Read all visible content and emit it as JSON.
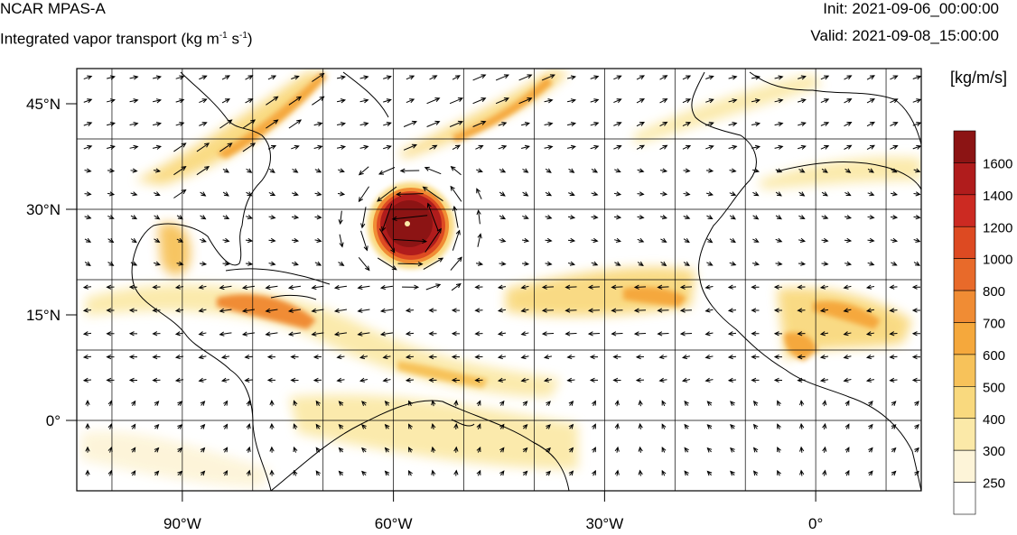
{
  "header": {
    "model": "NCAR MPAS-A",
    "field_prefix": "Integrated vapor transport (kg m",
    "field_exp1": "-1",
    "field_mid": " s",
    "field_exp2": "-1",
    "field_suffix": ")",
    "init": "Init: 2021-09-06_00:00:00",
    "valid": "Valid: 2021-09-08_15:00:00"
  },
  "map": {
    "lon_range": [
      -105,
      15
    ],
    "lat_range": [
      -10,
      50
    ],
    "lon_ticks": [
      {
        "lon": -90,
        "label": "90°W"
      },
      {
        "lon": -60,
        "label": "60°W"
      },
      {
        "lon": -30,
        "label": "30°W"
      },
      {
        "lon": 0,
        "label": "0°"
      }
    ],
    "lat_ticks": [
      {
        "lat": 45,
        "label": "45°N"
      },
      {
        "lat": 30,
        "label": "30°N"
      },
      {
        "lat": 15,
        "label": "15°N"
      },
      {
        "lat": 0,
        "label": "0°"
      }
    ],
    "grid_lons": [
      -100,
      -90,
      -80,
      -70,
      -60,
      -50,
      -40,
      -30,
      -20,
      -10,
      0,
      10
    ],
    "grid_lats": [
      -10,
      0,
      10,
      20,
      30,
      40,
      50
    ]
  },
  "colorbar": {
    "title": "[kg/m/s]",
    "levels": [
      "1600",
      "1400",
      "1200",
      "1000",
      "800",
      "700",
      "600",
      "500",
      "400",
      "300",
      "250"
    ],
    "colors": [
      "#8c1414",
      "#b01c1c",
      "#cc2a22",
      "#dd4a22",
      "#e86a2a",
      "#f08c34",
      "#f5a83c",
      "#f7c25a",
      "#f9d97e",
      "#fbe9a8",
      "#fdf4d8",
      "#ffffff"
    ]
  }
}
